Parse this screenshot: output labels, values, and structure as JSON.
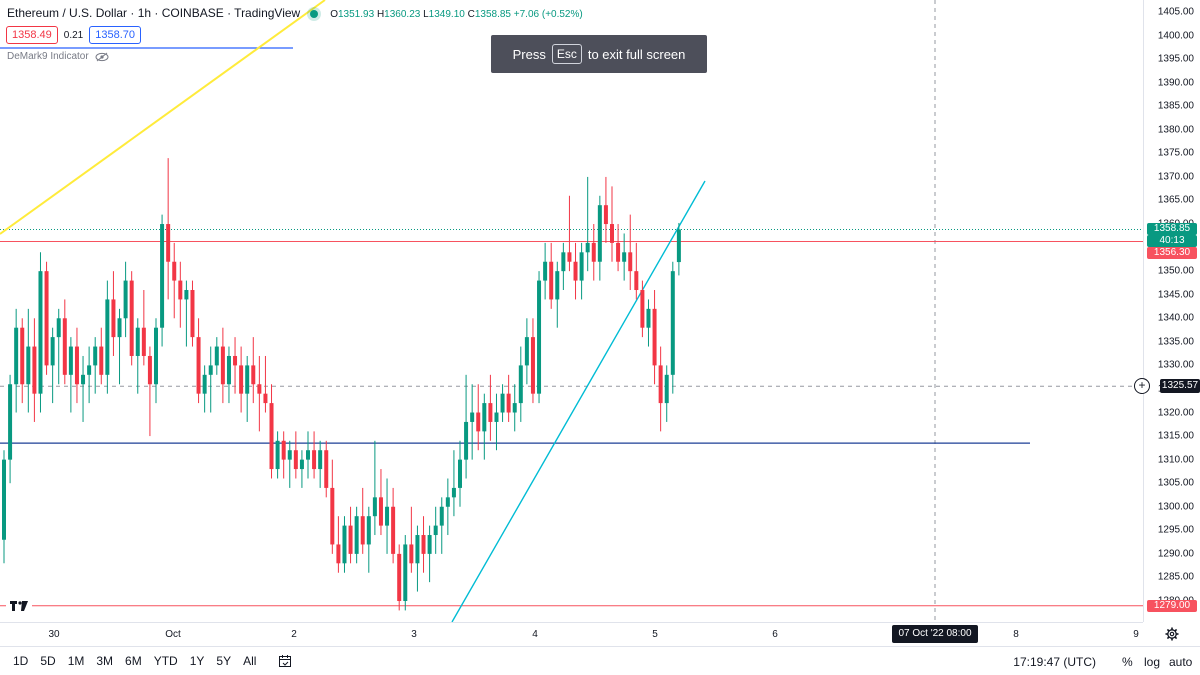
{
  "legend": {
    "title": "Ethereum / U.S. Dollar · 1h · COINBASE · TradingView",
    "open_label": "O",
    "open": "1351.93",
    "high_label": "H",
    "high": "1360.23",
    "low_label": "L",
    "low": "1349.10",
    "close_label": "C",
    "close": "1358.85",
    "change": "+7.06 (+0.52%)"
  },
  "quote": {
    "bid": "1358.49",
    "spread": "0.21",
    "ask": "1358.70"
  },
  "indicator": {
    "name": "DeMark9 Indicator"
  },
  "toast": {
    "before": "Press",
    "key": "Esc",
    "after": "to exit full screen"
  },
  "price_axis": {
    "ticks": [
      "1405.00",
      "1400.00",
      "1395.00",
      "1390.00",
      "1385.00",
      "1380.00",
      "1375.00",
      "1370.00",
      "1365.00",
      "1360.00",
      "1355.00",
      "1350.00",
      "1345.00",
      "1340.00",
      "1335.00",
      "1330.00",
      "1325.00",
      "1320.00",
      "1315.00",
      "1310.00",
      "1305.00",
      "1300.00",
      "1295.00",
      "1290.00",
      "1285.00",
      "1280.00"
    ],
    "current_price": "1358.85",
    "countdown": "40:13",
    "line_price_upper": "1356.30",
    "crosshair_price": "1325.57",
    "line_price_lower": "1279.00"
  },
  "time_axis": {
    "labels": [
      "30",
      "Oct",
      "2",
      "3",
      "4",
      "5",
      "6",
      "8",
      "9"
    ],
    "cursor": "07 Oct '22   08:00"
  },
  "bottom_bar": {
    "ranges": [
      "1D",
      "5D",
      "1M",
      "3M",
      "6M",
      "YTD",
      "1Y",
      "5Y",
      "All"
    ],
    "clock": "17:19:47 (UTC)",
    "percent": "%",
    "log": "log",
    "auto": "auto"
  },
  "colors": {
    "up": "#089981",
    "down": "#f23645",
    "red_line": "#f7525f",
    "blue_line": "#2962ff",
    "yellow_line": "#ffeb3b",
    "trend_line": "#00bcd4",
    "navy_line": "#1c3f95"
  },
  "chart_data": {
    "type": "candlestick",
    "instrument": "Ethereum / U.S. Dollar",
    "interval": "1h",
    "ylim": [
      1277,
      1407
    ],
    "horizontal_lines": [
      1356.3,
      1313.5,
      1279.0
    ],
    "candles": [
      [
        1293,
        1312,
        1288,
        1310
      ],
      [
        1310,
        1328,
        1305,
        1326
      ],
      [
        1326,
        1342,
        1320,
        1338
      ],
      [
        1338,
        1340,
        1322,
        1326
      ],
      [
        1326,
        1342,
        1320,
        1334
      ],
      [
        1334,
        1340,
        1318,
        1324
      ],
      [
        1324,
        1354,
        1320,
        1350
      ],
      [
        1350,
        1352,
        1328,
        1330
      ],
      [
        1330,
        1338,
        1322,
        1336
      ],
      [
        1336,
        1342,
        1326,
        1340
      ],
      [
        1340,
        1344,
        1326,
        1328
      ],
      [
        1328,
        1336,
        1320,
        1334
      ],
      [
        1334,
        1338,
        1322,
        1326
      ],
      [
        1326,
        1332,
        1318,
        1328
      ],
      [
        1328,
        1334,
        1322,
        1330
      ],
      [
        1330,
        1336,
        1324,
        1334
      ],
      [
        1334,
        1338,
        1326,
        1328
      ],
      [
        1328,
        1348,
        1324,
        1344
      ],
      [
        1344,
        1350,
        1332,
        1336
      ],
      [
        1336,
        1342,
        1326,
        1340
      ],
      [
        1340,
        1352,
        1336,
        1348
      ],
      [
        1348,
        1350,
        1330,
        1332
      ],
      [
        1332,
        1340,
        1324,
        1338
      ],
      [
        1338,
        1346,
        1330,
        1332
      ],
      [
        1332,
        1334,
        1315,
        1326
      ],
      [
        1326,
        1340,
        1322,
        1338
      ],
      [
        1338,
        1362,
        1334,
        1360
      ],
      [
        1360,
        1374,
        1344,
        1352
      ],
      [
        1352,
        1356,
        1340,
        1348
      ],
      [
        1348,
        1352,
        1338,
        1344
      ],
      [
        1344,
        1348,
        1334,
        1346
      ],
      [
        1346,
        1348,
        1334,
        1336
      ],
      [
        1336,
        1340,
        1322,
        1324
      ],
      [
        1324,
        1330,
        1320,
        1328
      ],
      [
        1328,
        1334,
        1320,
        1330
      ],
      [
        1330,
        1336,
        1328,
        1334
      ],
      [
        1334,
        1338,
        1322,
        1326
      ],
      [
        1326,
        1334,
        1322,
        1332
      ],
      [
        1332,
        1336,
        1324,
        1330
      ],
      [
        1330,
        1334,
        1320,
        1324
      ],
      [
        1324,
        1332,
        1318,
        1330
      ],
      [
        1330,
        1336,
        1322,
        1326
      ],
      [
        1326,
        1332,
        1316,
        1324
      ],
      [
        1324,
        1332,
        1320,
        1322
      ],
      [
        1322,
        1326,
        1306,
        1308
      ],
      [
        1308,
        1316,
        1306,
        1314
      ],
      [
        1314,
        1316,
        1306,
        1310
      ],
      [
        1310,
        1314,
        1304,
        1312
      ],
      [
        1312,
        1316,
        1306,
        1308
      ],
      [
        1308,
        1312,
        1304,
        1310
      ],
      [
        1310,
        1316,
        1306,
        1312
      ],
      [
        1312,
        1316,
        1306,
        1308
      ],
      [
        1308,
        1314,
        1304,
        1312
      ],
      [
        1312,
        1314,
        1302,
        1304
      ],
      [
        1304,
        1310,
        1290,
        1292
      ],
      [
        1292,
        1298,
        1286,
        1288
      ],
      [
        1288,
        1298,
        1286,
        1296
      ],
      [
        1296,
        1300,
        1288,
        1290
      ],
      [
        1290,
        1300,
        1288,
        1298
      ],
      [
        1298,
        1304,
        1290,
        1292
      ],
      [
        1292,
        1300,
        1286,
        1298
      ],
      [
        1298,
        1314,
        1294,
        1302
      ],
      [
        1302,
        1308,
        1294,
        1296
      ],
      [
        1296,
        1306,
        1290,
        1300
      ],
      [
        1300,
        1304,
        1288,
        1290
      ],
      [
        1290,
        1292,
        1278,
        1280
      ],
      [
        1280,
        1294,
        1278,
        1292
      ],
      [
        1292,
        1300,
        1286,
        1288
      ],
      [
        1288,
        1296,
        1282,
        1294
      ],
      [
        1294,
        1298,
        1286,
        1290
      ],
      [
        1290,
        1296,
        1284,
        1294
      ],
      [
        1294,
        1300,
        1290,
        1296
      ],
      [
        1296,
        1302,
        1290,
        1300
      ],
      [
        1300,
        1306,
        1294,
        1302
      ],
      [
        1302,
        1312,
        1298,
        1304
      ],
      [
        1304,
        1314,
        1300,
        1310
      ],
      [
        1310,
        1328,
        1306,
        1318
      ],
      [
        1318,
        1326,
        1310,
        1320
      ],
      [
        1320,
        1326,
        1312,
        1316
      ],
      [
        1316,
        1324,
        1310,
        1322
      ],
      [
        1322,
        1328,
        1314,
        1318
      ],
      [
        1318,
        1324,
        1312,
        1320
      ],
      [
        1320,
        1326,
        1318,
        1324
      ],
      [
        1324,
        1328,
        1318,
        1320
      ],
      [
        1320,
        1326,
        1316,
        1322
      ],
      [
        1322,
        1334,
        1318,
        1330
      ],
      [
        1330,
        1340,
        1326,
        1336
      ],
      [
        1336,
        1340,
        1322,
        1324
      ],
      [
        1324,
        1350,
        1322,
        1348
      ],
      [
        1348,
        1356,
        1344,
        1352
      ],
      [
        1352,
        1356,
        1342,
        1344
      ],
      [
        1344,
        1352,
        1338,
        1350
      ],
      [
        1350,
        1356,
        1346,
        1354
      ],
      [
        1354,
        1366,
        1350,
        1352
      ],
      [
        1352,
        1356,
        1344,
        1348
      ],
      [
        1348,
        1356,
        1344,
        1354
      ],
      [
        1354,
        1370,
        1350,
        1356
      ],
      [
        1356,
        1360,
        1348,
        1352
      ],
      [
        1352,
        1366,
        1348,
        1364
      ],
      [
        1364,
        1370,
        1356,
        1360
      ],
      [
        1360,
        1368,
        1352,
        1356
      ],
      [
        1356,
        1360,
        1350,
        1352
      ],
      [
        1352,
        1358,
        1348,
        1354
      ],
      [
        1354,
        1362,
        1346,
        1350
      ],
      [
        1350,
        1356,
        1344,
        1346
      ],
      [
        1346,
        1348,
        1336,
        1338
      ],
      [
        1338,
        1344,
        1334,
        1342
      ],
      [
        1342,
        1346,
        1326,
        1330
      ],
      [
        1330,
        1334,
        1316,
        1322
      ],
      [
        1322,
        1330,
        1318,
        1328
      ],
      [
        1328,
        1352,
        1324,
        1350
      ],
      [
        1351.93,
        1360.23,
        1349.1,
        1358.85
      ]
    ],
    "trend_lines": [
      {
        "color": "yellow",
        "from": [
          0,
          1360
        ],
        "to": [
          24,
          1402
        ]
      },
      {
        "color": "cyan",
        "from": [
          78,
          1274
        ],
        "to": [
          118,
          1370
        ]
      }
    ]
  }
}
